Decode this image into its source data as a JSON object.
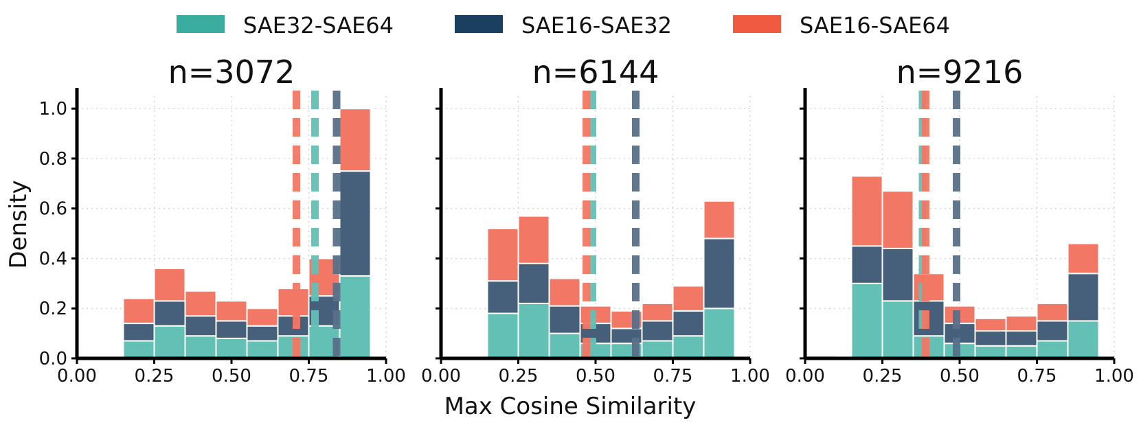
{
  "chart_data": {
    "type": "bar",
    "subtype": "stacked-histogram",
    "xlabel": "Max Cosine Similarity",
    "ylabel": "Density",
    "xlim": [
      0.0,
      1.0
    ],
    "ylim": [
      0.0,
      1.05
    ],
    "xticks": [
      "0.00",
      "0.25",
      "0.50",
      "0.75",
      "1.00"
    ],
    "xtick_values": [
      0.0,
      0.25,
      0.5,
      0.75,
      1.0
    ],
    "yticks": [
      "0.0",
      "0.2",
      "0.4",
      "0.6",
      "0.8",
      "1.0"
    ],
    "ytick_values": [
      0.0,
      0.2,
      0.4,
      0.6,
      0.8,
      1.0
    ],
    "grid": true,
    "legend_position": "top-center",
    "series": [
      {
        "name": "SAE32-SAE64",
        "color": "#3aada0"
      },
      {
        "name": "SAE16-SAE32",
        "color": "#1a3f5f"
      },
      {
        "name": "SAE16-SAE64",
        "color": "#ef5a40"
      }
    ],
    "panels": [
      {
        "title": "n=3072",
        "bin_width": 0.1,
        "bins": [
          {
            "x0": 0.15,
            "values": [
              0.07,
              0.07,
              0.1
            ]
          },
          {
            "x0": 0.25,
            "values": [
              0.13,
              0.1,
              0.13
            ]
          },
          {
            "x0": 0.35,
            "values": [
              0.09,
              0.08,
              0.1
            ]
          },
          {
            "x0": 0.45,
            "values": [
              0.08,
              0.07,
              0.08
            ]
          },
          {
            "x0": 0.55,
            "values": [
              0.07,
              0.06,
              0.07
            ]
          },
          {
            "x0": 0.65,
            "values": [
              0.09,
              0.08,
              0.11
            ]
          },
          {
            "x0": 0.75,
            "values": [
              0.13,
              0.12,
              0.15
            ]
          },
          {
            "x0": 0.85,
            "values": [
              0.33,
              0.42,
              0.25
            ]
          }
        ],
        "means": [
          0.77,
          0.84,
          0.71
        ]
      },
      {
        "title": "n=6144",
        "bin_width": 0.1,
        "bins": [
          {
            "x0": 0.0,
            "values": [
              0.0,
              0.0,
              0.005
            ]
          },
          {
            "x0": 0.15,
            "values": [
              0.18,
              0.13,
              0.21
            ]
          },
          {
            "x0": 0.25,
            "values": [
              0.22,
              0.16,
              0.19
            ]
          },
          {
            "x0": 0.35,
            "values": [
              0.1,
              0.11,
              0.11
            ]
          },
          {
            "x0": 0.45,
            "values": [
              0.06,
              0.08,
              0.07
            ]
          },
          {
            "x0": 0.55,
            "values": [
              0.06,
              0.06,
              0.07
            ]
          },
          {
            "x0": 0.65,
            "values": [
              0.07,
              0.08,
              0.07
            ]
          },
          {
            "x0": 0.75,
            "values": [
              0.09,
              0.1,
              0.1
            ]
          },
          {
            "x0": 0.85,
            "values": [
              0.2,
              0.28,
              0.15
            ]
          }
        ],
        "means": [
          0.49,
          0.63,
          0.47
        ]
      },
      {
        "title": "n=9216",
        "bin_width": 0.1,
        "bins": [
          {
            "x0": 0.0,
            "values": [
              0.0,
              0.0,
              0.01
            ]
          },
          {
            "x0": 0.15,
            "values": [
              0.3,
              0.15,
              0.28
            ]
          },
          {
            "x0": 0.25,
            "values": [
              0.23,
              0.21,
              0.23
            ]
          },
          {
            "x0": 0.35,
            "values": [
              0.09,
              0.14,
              0.11
            ]
          },
          {
            "x0": 0.45,
            "values": [
              0.06,
              0.08,
              0.07
            ]
          },
          {
            "x0": 0.55,
            "values": [
              0.05,
              0.06,
              0.05
            ]
          },
          {
            "x0": 0.65,
            "values": [
              0.05,
              0.06,
              0.06
            ]
          },
          {
            "x0": 0.75,
            "values": [
              0.07,
              0.08,
              0.07
            ]
          },
          {
            "x0": 0.85,
            "values": [
              0.15,
              0.19,
              0.12
            ]
          }
        ],
        "means": [
          0.38,
          0.49,
          0.39
        ]
      }
    ]
  }
}
